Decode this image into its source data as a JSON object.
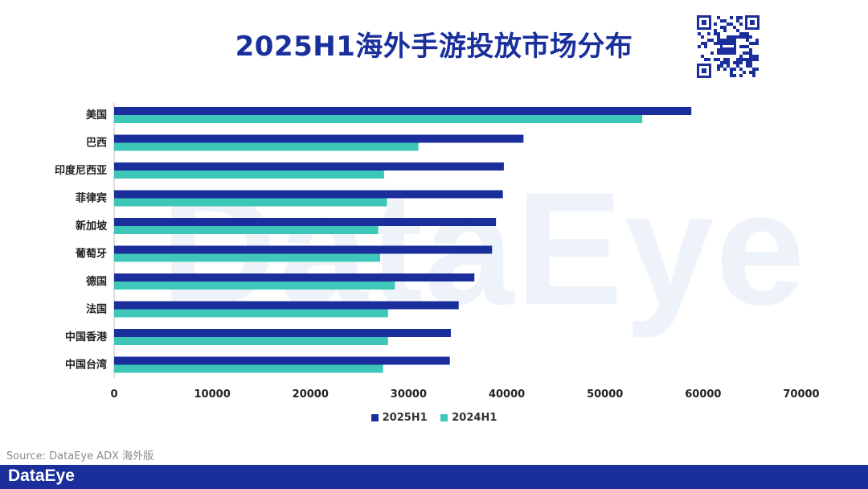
{
  "header": {
    "title": "2025H1海外手游投放市场分布"
  },
  "watermark": {
    "text": "DataEye"
  },
  "source": {
    "text": "Source: DataEye ADX 海外版"
  },
  "footer": {
    "logo_text": "DataEye"
  },
  "colors": {
    "series_2025": "#1a2f9c",
    "series_2024": "#3ec6b8",
    "footer_bg": "#1a2f9c",
    "title": "#1a2f9c"
  },
  "chart_data": {
    "type": "bar",
    "orientation": "horizontal",
    "title": "2025H1海外手游投放市场分布",
    "categories": [
      "美国",
      "巴西",
      "印度尼西亚",
      "菲律宾",
      "新加坡",
      "葡萄牙",
      "德国",
      "法国",
      "中国香港",
      "中国台湾"
    ],
    "series": [
      {
        "name": "2025H1",
        "color": "#1a2f9c",
        "values": [
          58800,
          41700,
          39700,
          39600,
          38900,
          38500,
          36700,
          35100,
          34300,
          34200
        ]
      },
      {
        "name": "2024H1",
        "color": "#3ec6b8",
        "values": [
          53800,
          31000,
          27500,
          27800,
          26900,
          27100,
          28600,
          27900,
          27900,
          27400
        ]
      }
    ],
    "xlim": [
      0,
      70000
    ],
    "xticks": [
      "0",
      "10000",
      "20000",
      "30000",
      "40000",
      "50000",
      "60000",
      "70000"
    ],
    "legend_position": "bottom",
    "grid": false
  }
}
